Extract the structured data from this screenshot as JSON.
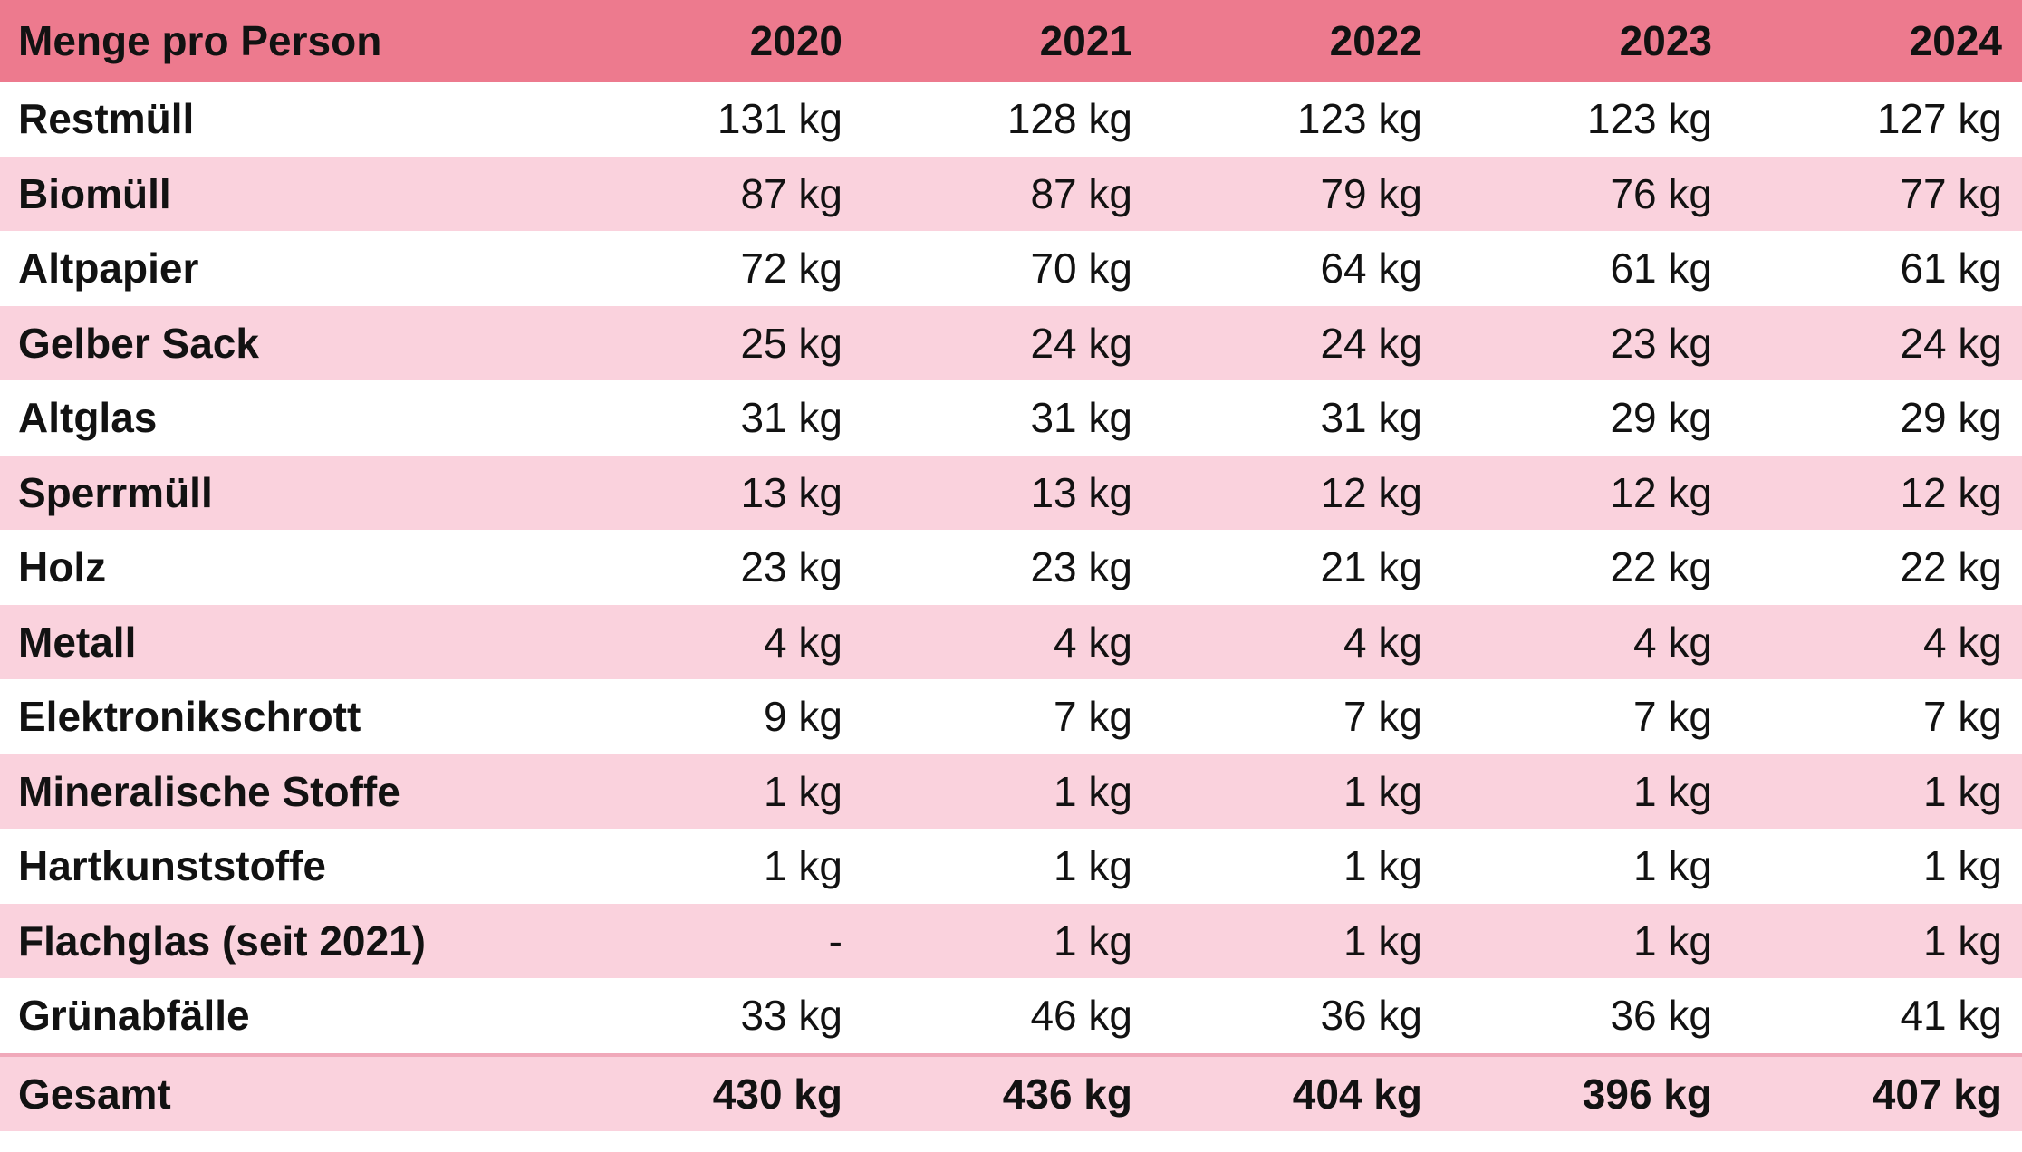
{
  "header": {
    "title": "Menge pro Person"
  },
  "chart_data": {
    "type": "table",
    "title": "Menge pro Person",
    "columns": [
      "Menge pro Person",
      "2020",
      "2021",
      "2022",
      "2023",
      "2024"
    ],
    "unit": "kg",
    "missing_display": "-",
    "rows": [
      {
        "label": "Restmüll",
        "values": [
          131,
          128,
          123,
          123,
          127
        ]
      },
      {
        "label": "Biomüll",
        "values": [
          87,
          87,
          79,
          76,
          77
        ]
      },
      {
        "label": "Altpapier",
        "values": [
          72,
          70,
          64,
          61,
          61
        ]
      },
      {
        "label": "Gelber Sack",
        "values": [
          25,
          24,
          24,
          23,
          24
        ]
      },
      {
        "label": "Altglas",
        "values": [
          31,
          31,
          31,
          29,
          29
        ]
      },
      {
        "label": "Sperrmüll",
        "values": [
          13,
          13,
          12,
          12,
          12
        ]
      },
      {
        "label": "Holz",
        "values": [
          23,
          23,
          21,
          22,
          22
        ]
      },
      {
        "label": "Metall",
        "values": [
          4,
          4,
          4,
          4,
          4
        ]
      },
      {
        "label": "Elektronikschrott",
        "values": [
          9,
          7,
          7,
          7,
          7
        ]
      },
      {
        "label": "Mineralische Stoffe",
        "values": [
          1,
          1,
          1,
          1,
          1
        ]
      },
      {
        "label": "Hartkunststoffe",
        "values": [
          1,
          1,
          1,
          1,
          1
        ]
      },
      {
        "label": "Flachglas (seit 2021)",
        "values": [
          null,
          1,
          1,
          1,
          1
        ]
      },
      {
        "label": "Grünabfälle",
        "values": [
          33,
          46,
          36,
          36,
          41
        ]
      },
      {
        "label": "Gesamt",
        "values": [
          430,
          436,
          404,
          396,
          407
        ],
        "is_total": true
      }
    ]
  },
  "colors": {
    "header_bg": "#ed7a8e",
    "row_bg": "#ffffff",
    "row_alt_bg": "#fad2dd",
    "divider": "#f0a9ba",
    "text": "#121212"
  }
}
